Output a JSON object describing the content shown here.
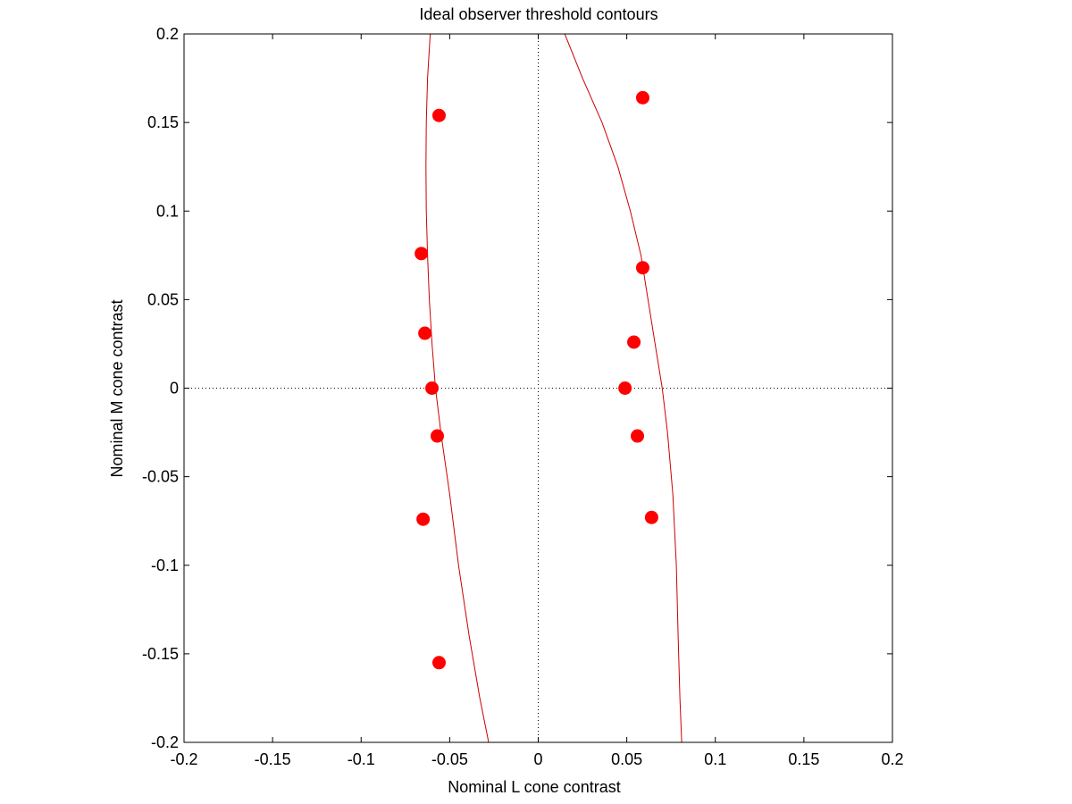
{
  "chart_data": {
    "type": "scatter",
    "title": "Ideal observer threshold contours",
    "xlabel": "Nominal L cone contrast",
    "ylabel": "Nominal M cone contrast",
    "xlim": [
      -0.2,
      0.2
    ],
    "ylim": [
      -0.2,
      0.2
    ],
    "xticks": [
      "-0.2",
      "-0.15",
      "-0.1",
      "-0.05",
      "0",
      "0.05",
      "0.1",
      "0.15",
      "0.2"
    ],
    "yticks": [
      "0.2",
      "0.15",
      "0.1",
      "0.05",
      "0",
      "-0.05",
      "-0.1",
      "-0.15",
      "-0.2"
    ],
    "grid": false,
    "zero_lines": true,
    "colors": {
      "points": "#ff0000",
      "contours": "#cc0000",
      "zero_lines": "#000000"
    },
    "points": [
      {
        "x": -0.056,
        "y": 0.154
      },
      {
        "x": -0.066,
        "y": 0.076
      },
      {
        "x": -0.064,
        "y": 0.031
      },
      {
        "x": -0.06,
        "y": 0.0
      },
      {
        "x": -0.057,
        "y": -0.027
      },
      {
        "x": -0.065,
        "y": -0.074
      },
      {
        "x": -0.056,
        "y": -0.155
      },
      {
        "x": 0.059,
        "y": 0.164
      },
      {
        "x": 0.059,
        "y": 0.068
      },
      {
        "x": 0.054,
        "y": 0.026
      },
      {
        "x": 0.049,
        "y": 0.0
      },
      {
        "x": 0.056,
        "y": -0.027
      },
      {
        "x": 0.064,
        "y": -0.073
      }
    ],
    "contours": [
      {
        "x": [
          -0.061,
          -0.0625,
          -0.0632,
          -0.0634,
          -0.0632,
          -0.0625,
          -0.0615,
          -0.06,
          -0.058,
          -0.055,
          -0.05,
          -0.045,
          -0.039,
          -0.033,
          -0.028
        ],
        "y": [
          0.2,
          0.175,
          0.15,
          0.125,
          0.1,
          0.075,
          0.05,
          0.025,
          0.0,
          -0.025,
          -0.06,
          -0.1,
          -0.14,
          -0.175,
          -0.2
        ]
      },
      {
        "x": [
          0.015,
          0.025,
          0.036,
          0.045,
          0.052,
          0.058,
          0.062,
          0.066,
          0.07,
          0.073,
          0.076,
          0.078,
          0.079,
          0.08,
          0.081
        ],
        "y": [
          0.2,
          0.175,
          0.15,
          0.125,
          0.1,
          0.075,
          0.05,
          0.025,
          0.0,
          -0.025,
          -0.06,
          -0.1,
          -0.14,
          -0.175,
          -0.2
        ]
      }
    ]
  }
}
